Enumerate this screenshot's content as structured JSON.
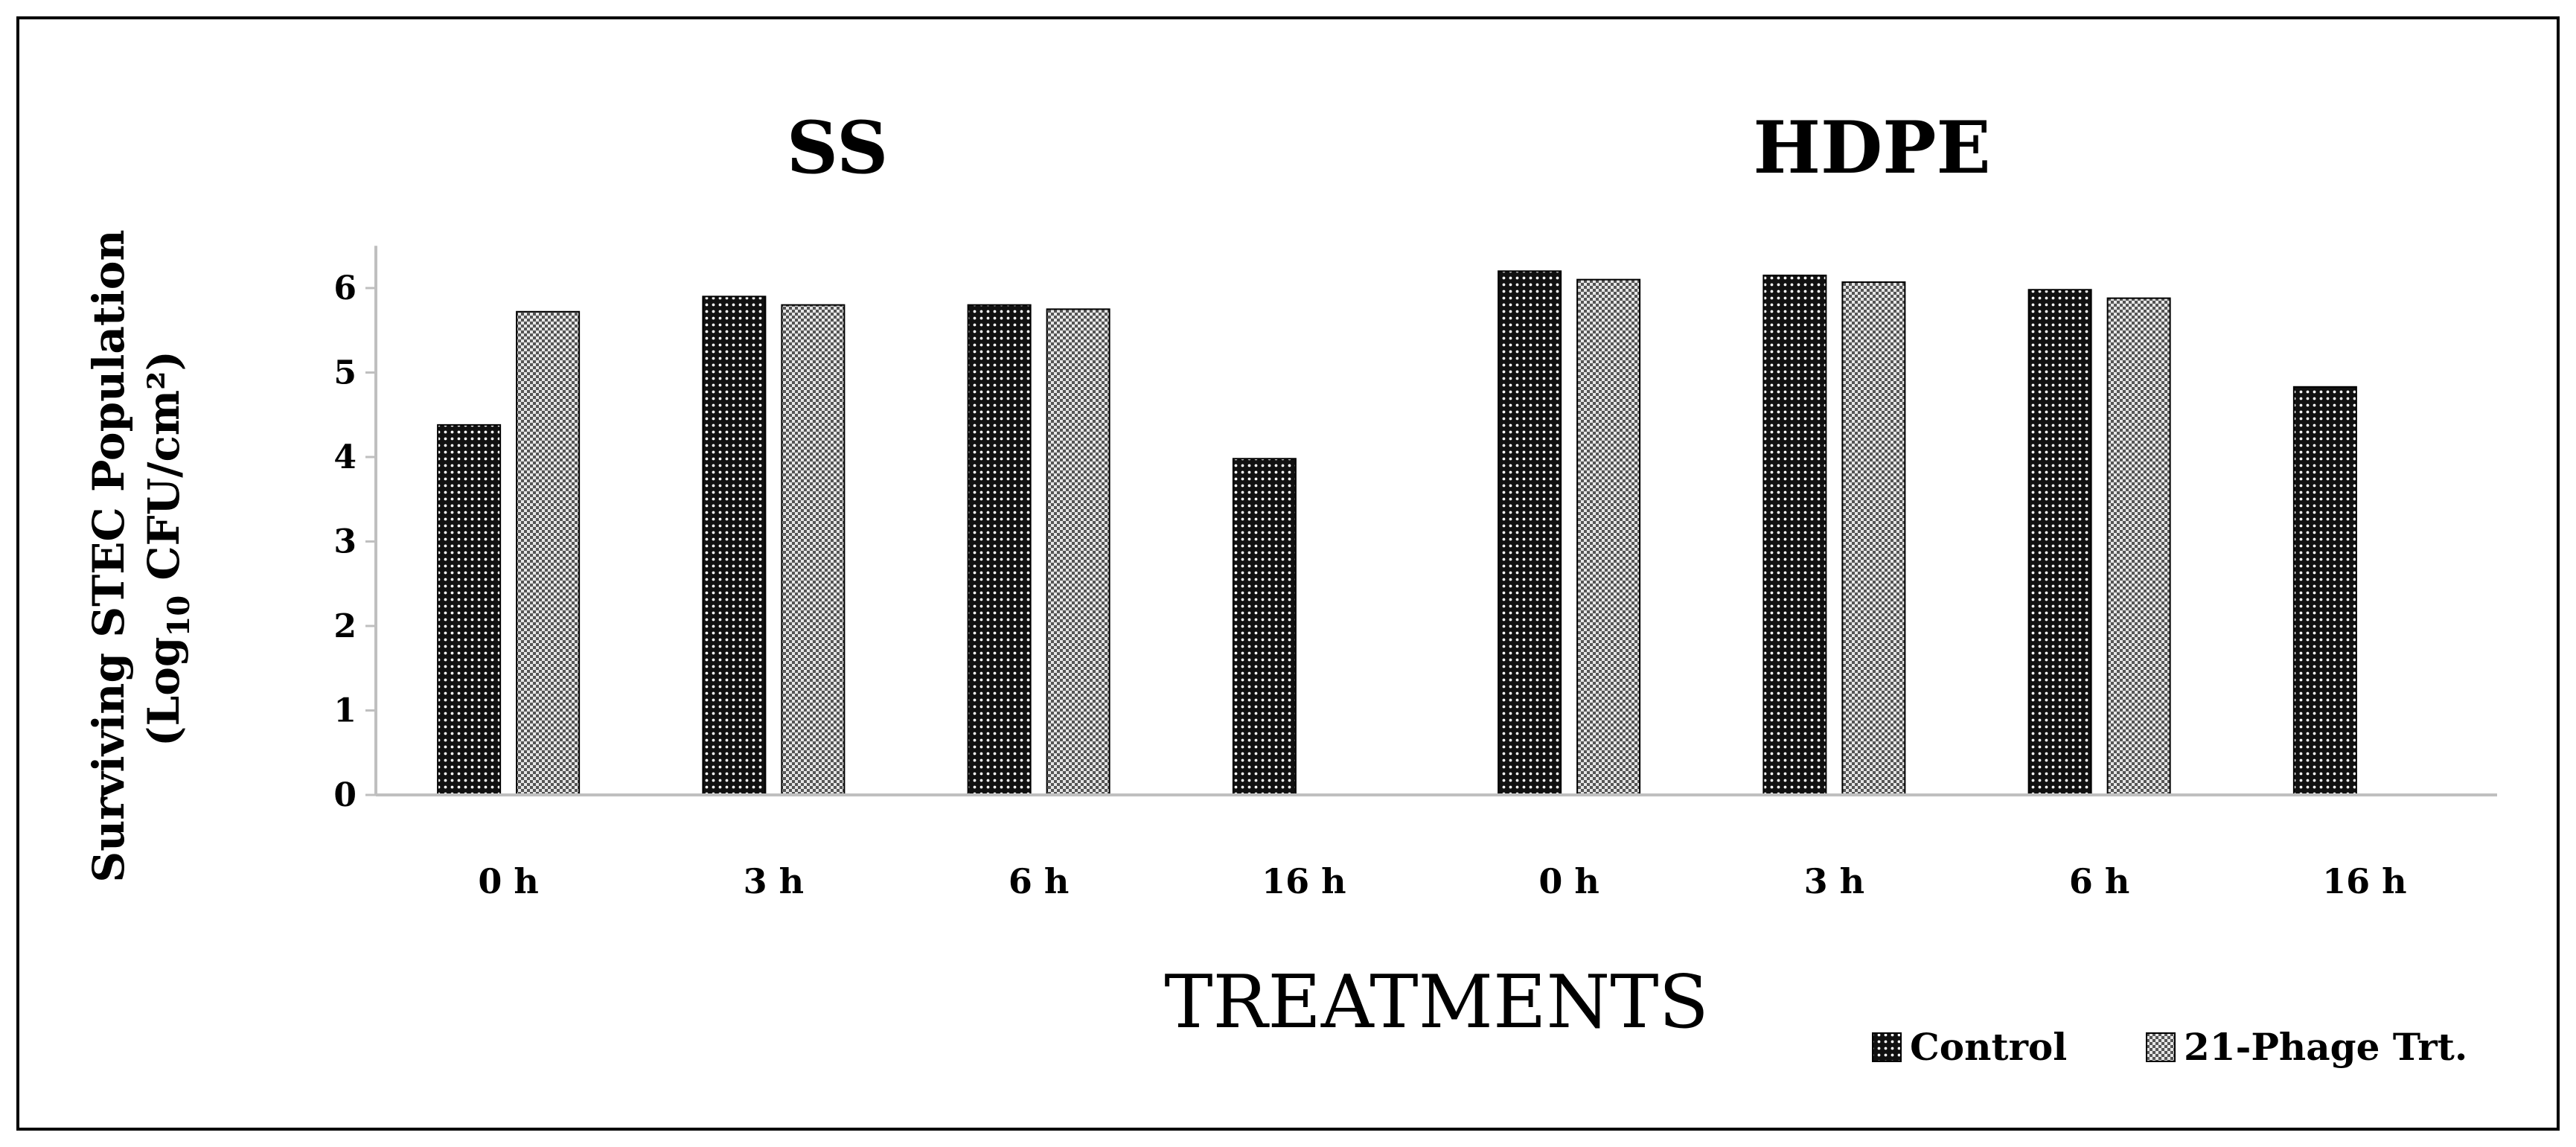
{
  "chart_data": {
    "type": "bar",
    "panels": [
      {
        "title": "SS",
        "categories": [
          "0 h",
          "3 h",
          "6 h",
          "16 h"
        ]
      },
      {
        "title": "HDPE",
        "categories": [
          "0 h",
          "3 h",
          "6 h",
          "16 h"
        ]
      }
    ],
    "series": [
      {
        "name": "Control",
        "pattern": "dots-dark",
        "values": [
          4.38,
          5.9,
          5.8,
          3.98,
          6.2,
          6.15,
          5.98,
          4.83
        ]
      },
      {
        "name": "21-Phage Trt.",
        "pattern": "checker-light",
        "values": [
          5.72,
          5.8,
          5.75,
          0,
          6.1,
          6.07,
          5.88,
          0
        ]
      }
    ],
    "xlabel": "TREATMENTS",
    "ylabel_line1": "Surviving STEC Population",
    "ylabel_line2_pre": "(Log",
    "ylabel_line2_sub": "10",
    "ylabel_line2_post": " CFU/cm²)",
    "yticks": [
      "0",
      "1",
      "2",
      "3",
      "4",
      "5",
      "6"
    ],
    "ylim": [
      0,
      6.5
    ],
    "grid": false,
    "legend_position": "bottom-right"
  }
}
